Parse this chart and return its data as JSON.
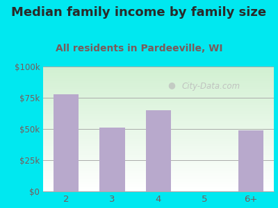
{
  "title": "Median family income by family size",
  "subtitle": "All residents in Pardeeville, WI",
  "categories": [
    "2",
    "3",
    "4",
    "5",
    "6+"
  ],
  "values": [
    78000,
    51000,
    65000,
    0,
    49000
  ],
  "bar_color": "#b8a9cc",
  "title_color": "#2a2a2a",
  "subtitle_color": "#7a5a5a",
  "outer_bg_color": "#00e8f0",
  "ytick_labels": [
    "$0",
    "$25k",
    "$50k",
    "$75k",
    "$100k"
  ],
  "ytick_values": [
    0,
    25000,
    50000,
    75000,
    100000
  ],
  "ylim": [
    0,
    100000
  ],
  "title_fontsize": 13,
  "subtitle_fontsize": 10,
  "tick_color": "#7a5a5a",
  "watermark_text": "City-Data.com",
  "plot_bg_top": "#d8edd8",
  "plot_bg_bottom": "#ffffff"
}
